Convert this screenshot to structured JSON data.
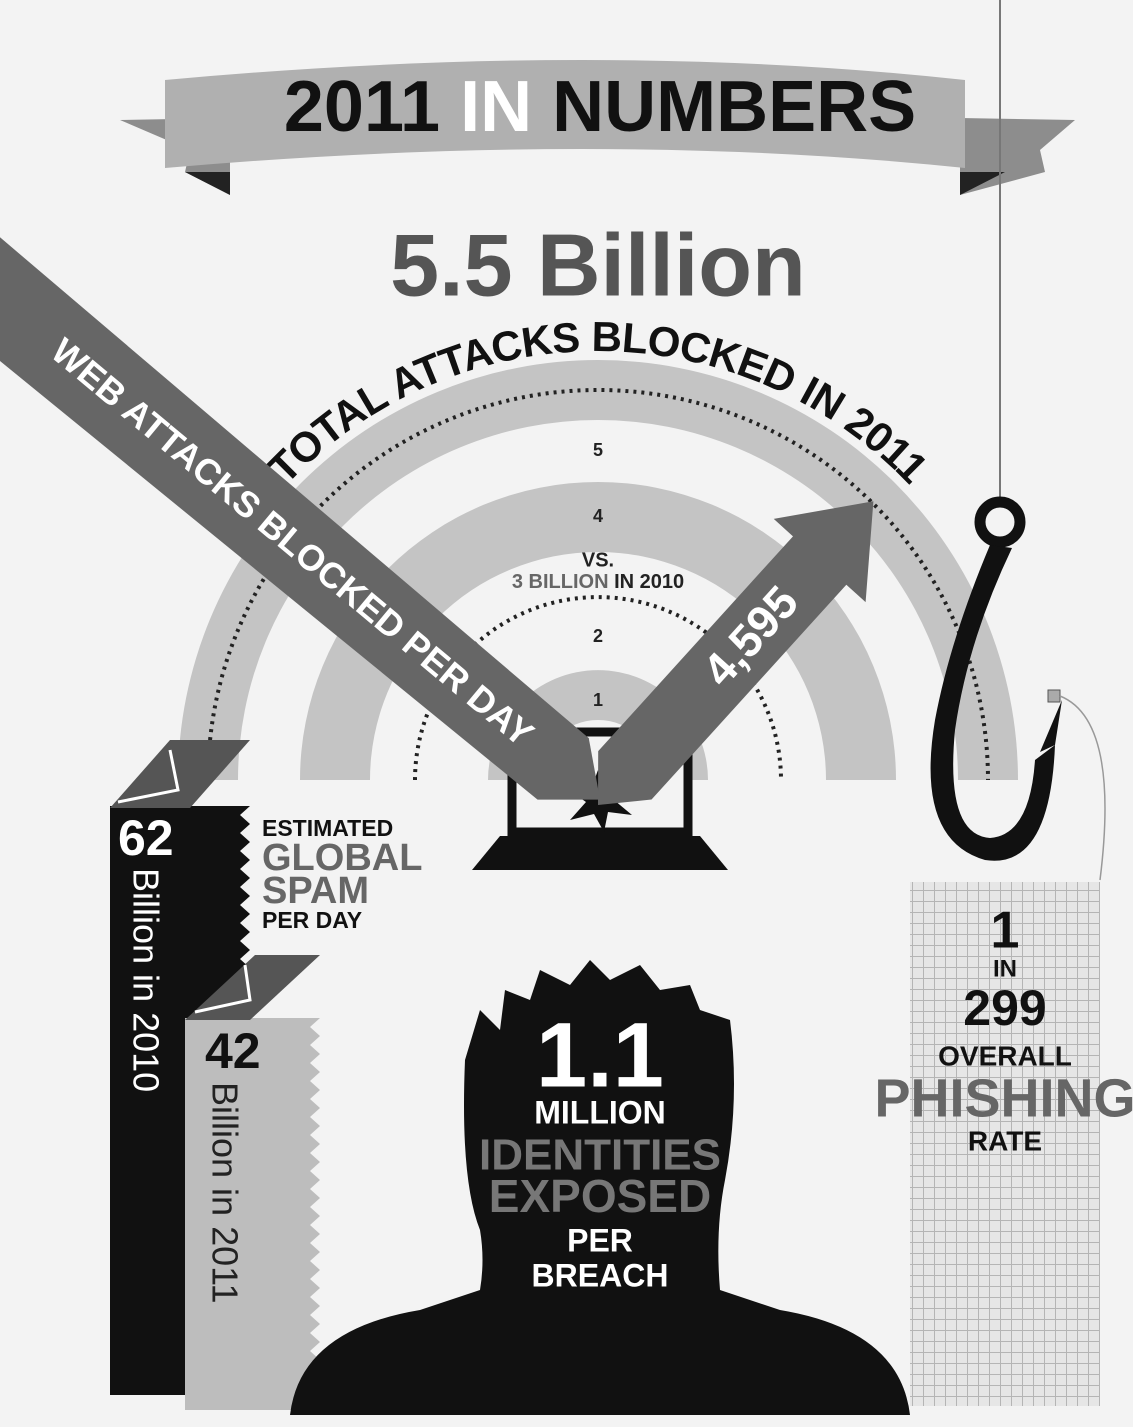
{
  "banner": {
    "year": "2011",
    "in": "IN",
    "word": "NUMBERS"
  },
  "total_attacks": {
    "value": "5.5 Billion",
    "label": "TOTAL ATTACKS BLOCKED IN 2011",
    "scale_labels": [
      "5",
      "4",
      "2",
      "1"
    ],
    "comparison": {
      "vs": "VS.",
      "amount": "3 BILLION",
      "year": "IN 2010"
    }
  },
  "web_attacks": {
    "label": "WEB ATTACKS BLOCKED PER DAY",
    "value": "4,595"
  },
  "spam": {
    "label": [
      "ESTIMATED",
      "GLOBAL",
      "SPAM",
      "PER DAY"
    ],
    "bars": [
      {
        "value": "62",
        "label": "Billion in 2010"
      },
      {
        "value": "42",
        "label": "Billion in 2011"
      }
    ]
  },
  "identities": {
    "value": "1.1",
    "lines": [
      "MILLION",
      "IDENTITIES",
      "EXPOSED",
      "PER",
      "BREACH"
    ]
  },
  "phishing": {
    "lines": [
      "1",
      "IN",
      "299",
      "OVERALL",
      "PHISHING",
      "RATE"
    ]
  }
}
